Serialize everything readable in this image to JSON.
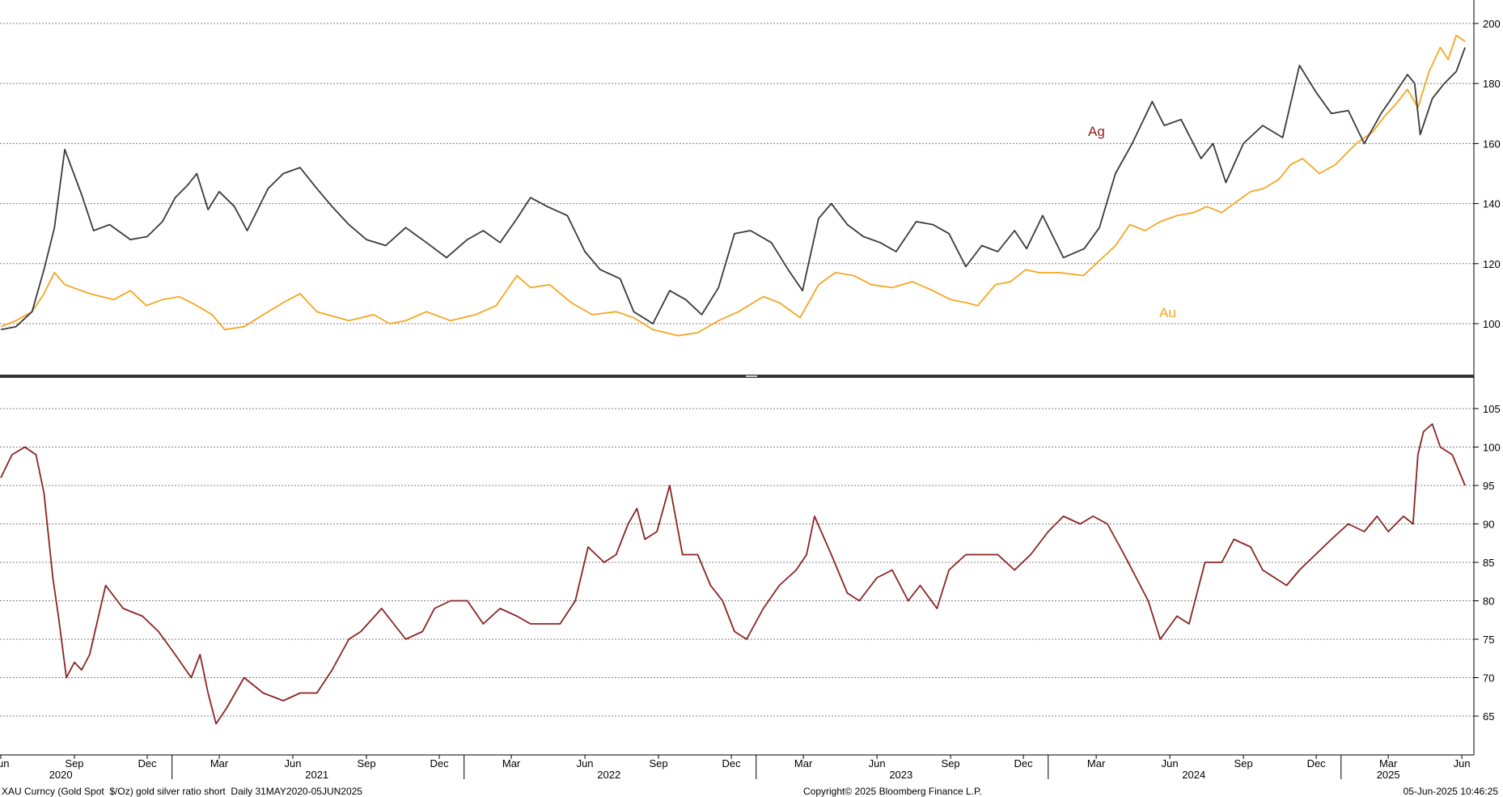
{
  "footer": {
    "left": "XAU Curncy (Gold Spot  $/Oz) gold silver ratio short  Daily 31MAY2020-05JUN2025",
    "center": "Copyright© 2025 Bloomberg Finance L.P.",
    "right": "05-Jun-2025 10:46:25"
  },
  "colors": {
    "ag": "#3a3a3a",
    "au": "#f5a623",
    "ratio": "#8b2323",
    "ag_label": "#8b2323",
    "au_label": "#f5a623"
  },
  "chart_data": [
    {
      "type": "line",
      "title": "",
      "x_range": [
        "2020-05-31",
        "2025-06-05"
      ],
      "ylim": [
        90,
        200
      ],
      "yticks": [
        100,
        120,
        140,
        160,
        180,
        200
      ],
      "grid": true,
      "annotations": [
        {
          "text": "Ag",
          "series": "Ag"
        },
        {
          "text": "Au",
          "series": "Au"
        }
      ],
      "series": [
        {
          "name": "Ag",
          "x": [
            "2020-06-01",
            "2020-06-20",
            "2020-07-10",
            "2020-07-25",
            "2020-08-07",
            "2020-08-20",
            "2020-09-10",
            "2020-09-25",
            "2020-10-15",
            "2020-11-10",
            "2020-12-01",
            "2020-12-20",
            "2021-01-05",
            "2021-01-20",
            "2021-02-01",
            "2021-02-15",
            "2021-03-01",
            "2021-03-20",
            "2021-04-05",
            "2021-05-01",
            "2021-05-20",
            "2021-06-10",
            "2021-07-01",
            "2021-07-20",
            "2021-08-10",
            "2021-09-01",
            "2021-09-25",
            "2021-10-20",
            "2021-11-15",
            "2021-12-10",
            "2022-01-05",
            "2022-01-25",
            "2022-02-15",
            "2022-03-08",
            "2022-03-25",
            "2022-04-15",
            "2022-05-10",
            "2022-06-01",
            "2022-06-20",
            "2022-07-15",
            "2022-08-01",
            "2022-08-25",
            "2022-09-15",
            "2022-10-05",
            "2022-10-25",
            "2022-11-15",
            "2022-12-05",
            "2022-12-25",
            "2023-01-20",
            "2023-02-10",
            "2023-02-28",
            "2023-03-20",
            "2023-04-05",
            "2023-04-25",
            "2023-05-15",
            "2023-06-05",
            "2023-06-25",
            "2023-07-20",
            "2023-08-10",
            "2023-08-30",
            "2023-09-20",
            "2023-10-10",
            "2023-10-30",
            "2023-11-20",
            "2023-12-05",
            "2023-12-25",
            "2024-01-20",
            "2024-02-15",
            "2024-03-05",
            "2024-03-25",
            "2024-04-15",
            "2024-05-10",
            "2024-05-25",
            "2024-06-15",
            "2024-07-10",
            "2024-07-25",
            "2024-08-10",
            "2024-09-01",
            "2024-09-25",
            "2024-10-20",
            "2024-11-10",
            "2024-12-01",
            "2024-12-20",
            "2025-01-10",
            "2025-01-30",
            "2025-02-20",
            "2025-03-05",
            "2025-03-25",
            "2025-04-03",
            "2025-04-10",
            "2025-04-25",
            "2025-05-10",
            "2025-05-25",
            "2025-06-05"
          ],
          "values": [
            98,
            99,
            104,
            118,
            132,
            158,
            143,
            131,
            133,
            128,
            129,
            134,
            142,
            146,
            150,
            138,
            144,
            139,
            131,
            145,
            150,
            152,
            145,
            139,
            133,
            128,
            126,
            132,
            127,
            122,
            128,
            131,
            127,
            135,
            142,
            139,
            136,
            124,
            118,
            115,
            104,
            100,
            111,
            108,
            103,
            112,
            130,
            131,
            127,
            118,
            111,
            135,
            140,
            133,
            129,
            127,
            124,
            134,
            133,
            130,
            119,
            126,
            124,
            131,
            125,
            136,
            122,
            125,
            132,
            150,
            160,
            174,
            166,
            168,
            155,
            160,
            147,
            160,
            166,
            162,
            186,
            177,
            170,
            171,
            160,
            170,
            175,
            183,
            180,
            163,
            175,
            180,
            184,
            192
          ]
        },
        {
          "name": "Au",
          "x": [
            "2020-06-01",
            "2020-06-20",
            "2020-07-10",
            "2020-07-25",
            "2020-08-07",
            "2020-08-20",
            "2020-09-20",
            "2020-10-20",
            "2020-11-10",
            "2020-11-30",
            "2020-12-20",
            "2021-01-10",
            "2021-02-01",
            "2021-02-20",
            "2021-03-08",
            "2021-04-01",
            "2021-04-25",
            "2021-05-20",
            "2021-06-10",
            "2021-07-01",
            "2021-08-10",
            "2021-09-10",
            "2021-09-30",
            "2021-10-20",
            "2021-11-15",
            "2021-12-15",
            "2022-01-15",
            "2022-02-10",
            "2022-03-08",
            "2022-03-25",
            "2022-04-18",
            "2022-05-15",
            "2022-06-10",
            "2022-07-10",
            "2022-08-01",
            "2022-08-25",
            "2022-09-25",
            "2022-10-20",
            "2022-11-15",
            "2022-12-10",
            "2023-01-10",
            "2023-01-30",
            "2023-02-25",
            "2023-03-20",
            "2023-04-10",
            "2023-05-03",
            "2023-05-25",
            "2023-06-20",
            "2023-07-15",
            "2023-08-10",
            "2023-09-01",
            "2023-09-20",
            "2023-10-05",
            "2023-10-27",
            "2023-11-15",
            "2023-12-04",
            "2023-12-20",
            "2024-01-15",
            "2024-02-14",
            "2024-03-05",
            "2024-03-25",
            "2024-04-12",
            "2024-05-01",
            "2024-05-20",
            "2024-06-10",
            "2024-07-01",
            "2024-07-17",
            "2024-08-05",
            "2024-08-20",
            "2024-09-10",
            "2024-09-26",
            "2024-10-15",
            "2024-10-30",
            "2024-11-14",
            "2024-12-05",
            "2024-12-25",
            "2025-01-20",
            "2025-02-10",
            "2025-02-24",
            "2025-03-10",
            "2025-03-25",
            "2025-04-07",
            "2025-04-21",
            "2025-05-05",
            "2025-05-15",
            "2025-05-25",
            "2025-06-05"
          ],
          "values": [
            99,
            101,
            104,
            110,
            117,
            113,
            110,
            108,
            111,
            106,
            108,
            109,
            106,
            103,
            98,
            99,
            103,
            107,
            110,
            104,
            101,
            103,
            100,
            101,
            104,
            101,
            103,
            106,
            116,
            112,
            113,
            107,
            103,
            104,
            102,
            98,
            96,
            97,
            101,
            104,
            109,
            107,
            102,
            113,
            117,
            116,
            113,
            112,
            114,
            111,
            108,
            107,
            106,
            113,
            114,
            118,
            117,
            117,
            116,
            121,
            126,
            133,
            131,
            134,
            136,
            137,
            139,
            137,
            140,
            144,
            145,
            148,
            153,
            155,
            150,
            153,
            160,
            164,
            169,
            173,
            178,
            172,
            184,
            192,
            188,
            196,
            194
          ]
        }
      ]
    },
    {
      "type": "line",
      "title": "",
      "x_range": [
        "2020-05-31",
        "2025-06-05"
      ],
      "ylim": [
        60,
        107
      ],
      "yticks": [
        65,
        70,
        75,
        80,
        85,
        90,
        95,
        100,
        105
      ],
      "grid": true,
      "series": [
        {
          "name": "gold silver ratio",
          "x": [
            "2020-06-01",
            "2020-06-15",
            "2020-07-01",
            "2020-07-15",
            "2020-07-25",
            "2020-08-05",
            "2020-08-12",
            "2020-08-22",
            "2020-09-01",
            "2020-09-10",
            "2020-09-20",
            "2020-10-10",
            "2020-11-01",
            "2020-11-25",
            "2020-12-15",
            "2021-01-05",
            "2021-01-25",
            "2021-02-05",
            "2021-02-15",
            "2021-02-25",
            "2021-03-10",
            "2021-04-01",
            "2021-04-25",
            "2021-05-20",
            "2021-06-10",
            "2021-07-01",
            "2021-07-20",
            "2021-08-10",
            "2021-08-25",
            "2021-09-20",
            "2021-10-05",
            "2021-10-20",
            "2021-11-10",
            "2021-11-25",
            "2021-12-15",
            "2022-01-05",
            "2022-01-25",
            "2022-02-15",
            "2022-03-08",
            "2022-03-25",
            "2022-04-15",
            "2022-05-01",
            "2022-05-20",
            "2022-06-05",
            "2022-06-25",
            "2022-07-10",
            "2022-07-25",
            "2022-08-05",
            "2022-08-15",
            "2022-08-30",
            "2022-09-15",
            "2022-10-01",
            "2022-10-20",
            "2022-11-05",
            "2022-11-20",
            "2022-12-05",
            "2022-12-20",
            "2023-01-10",
            "2023-01-30",
            "2023-02-20",
            "2023-03-05",
            "2023-03-15",
            "2023-04-05",
            "2023-04-25",
            "2023-05-10",
            "2023-06-01",
            "2023-06-20",
            "2023-07-10",
            "2023-07-25",
            "2023-08-15",
            "2023-08-30",
            "2023-09-20",
            "2023-10-10",
            "2023-10-30",
            "2023-11-20",
            "2023-12-10",
            "2024-01-01",
            "2024-01-20",
            "2024-02-10",
            "2024-02-26",
            "2024-03-15",
            "2024-04-05",
            "2024-04-20",
            "2024-05-05",
            "2024-05-20",
            "2024-06-10",
            "2024-06-25",
            "2024-07-15",
            "2024-08-05",
            "2024-08-20",
            "2024-09-10",
            "2024-09-25",
            "2024-10-10",
            "2024-10-25",
            "2024-11-10",
            "2024-11-30",
            "2024-12-20",
            "2025-01-10",
            "2025-01-30",
            "2025-02-15",
            "2025-03-01",
            "2025-03-20",
            "2025-04-01",
            "2025-04-07",
            "2025-04-14",
            "2025-04-25",
            "2025-05-05",
            "2025-05-20",
            "2025-06-05"
          ],
          "values": [
            96,
            99,
            100,
            99,
            94,
            83,
            78,
            70,
            72,
            71,
            73,
            82,
            79,
            78,
            76,
            73,
            70,
            73,
            68,
            64,
            66,
            70,
            68,
            67,
            68,
            68,
            71,
            75,
            76,
            79,
            77,
            75,
            76,
            79,
            80,
            80,
            77,
            79,
            78,
            77,
            77,
            77,
            80,
            87,
            85,
            86,
            90,
            92,
            88,
            89,
            95,
            86,
            86,
            82,
            80,
            76,
            75,
            79,
            82,
            84,
            86,
            91,
            86,
            81,
            80,
            83,
            84,
            80,
            82,
            79,
            84,
            86,
            86,
            86,
            84,
            86,
            89,
            91,
            90,
            91,
            90,
            86,
            83,
            80,
            75,
            78,
            77,
            85,
            85,
            88,
            87,
            84,
            83,
            82,
            84,
            86,
            88,
            90,
            89,
            91,
            89,
            91,
            90,
            99,
            102,
            103,
            100,
            99,
            95
          ]
        }
      ]
    }
  ],
  "x_axis": {
    "months": [
      {
        "label": "Jun",
        "date": "2020-06-01"
      },
      {
        "label": "Sep",
        "date": "2020-09-01"
      },
      {
        "label": "Dec",
        "date": "2020-12-01"
      },
      {
        "label": "Mar",
        "date": "2021-03-01"
      },
      {
        "label": "Jun",
        "date": "2021-06-01"
      },
      {
        "label": "Sep",
        "date": "2021-09-01"
      },
      {
        "label": "Dec",
        "date": "2021-12-01"
      },
      {
        "label": "Mar",
        "date": "2022-03-01"
      },
      {
        "label": "Jun",
        "date": "2022-06-01"
      },
      {
        "label": "Sep",
        "date": "2022-09-01"
      },
      {
        "label": "Dec",
        "date": "2022-12-01"
      },
      {
        "label": "Mar",
        "date": "2023-03-01"
      },
      {
        "label": "Jun",
        "date": "2023-06-01"
      },
      {
        "label": "Sep",
        "date": "2023-09-01"
      },
      {
        "label": "Dec",
        "date": "2023-12-01"
      },
      {
        "label": "Mar",
        "date": "2024-03-01"
      },
      {
        "label": "Jun",
        "date": "2024-06-01"
      },
      {
        "label": "Sep",
        "date": "2024-09-01"
      },
      {
        "label": "Dec",
        "date": "2024-12-01"
      },
      {
        "label": "Mar",
        "date": "2025-03-01"
      },
      {
        "label": "Jun",
        "date": "2025-06-01"
      }
    ],
    "years": [
      {
        "label": "2020",
        "date": "2020-08-15"
      },
      {
        "label": "2021",
        "date": "2021-07-01"
      },
      {
        "label": "2022",
        "date": "2022-07-01"
      },
      {
        "label": "2023",
        "date": "2023-07-01"
      },
      {
        "label": "2024",
        "date": "2024-07-01"
      },
      {
        "label": "2025",
        "date": "2025-03-01"
      }
    ],
    "year_boundaries": [
      "2021-01-01",
      "2022-01-01",
      "2023-01-01",
      "2024-01-01",
      "2025-01-01"
    ]
  }
}
